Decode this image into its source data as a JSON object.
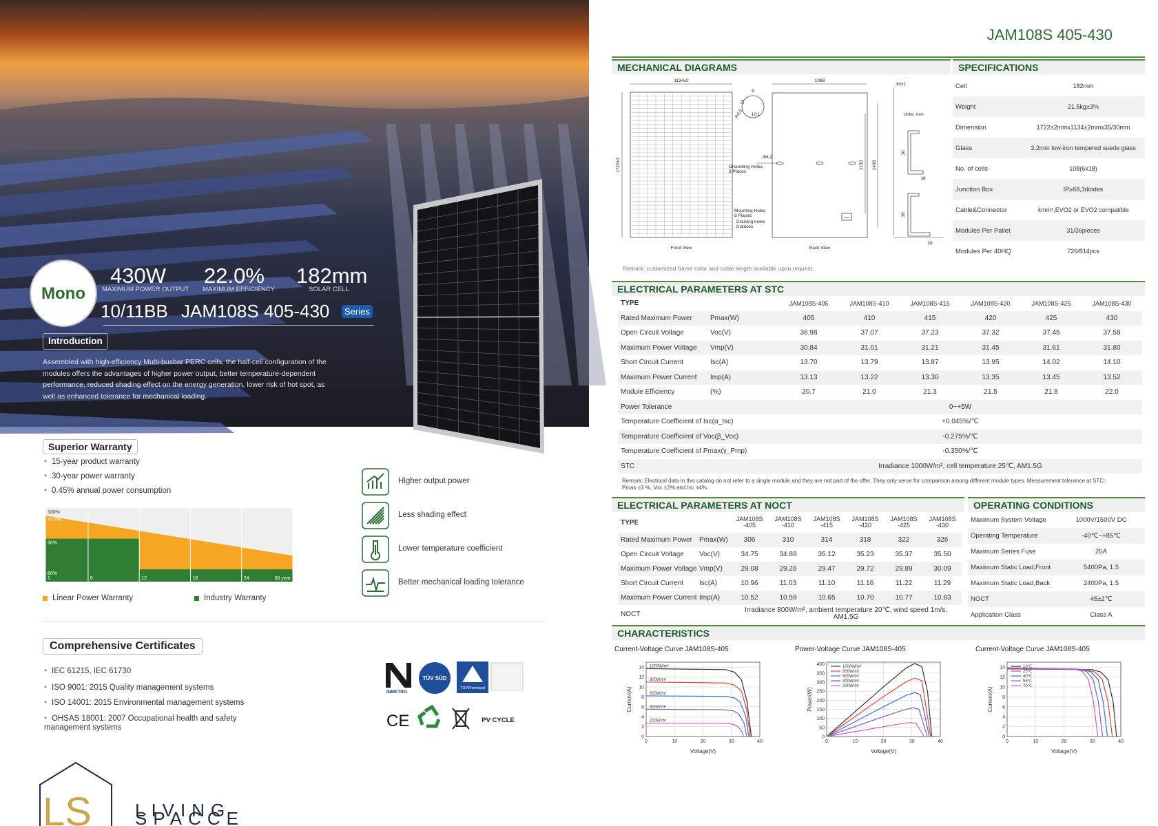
{
  "photo_panel": {
    "badge": "Mono",
    "stats": [
      {
        "value": "430W",
        "label": "MAXIMUM POWER OUTPUT"
      },
      {
        "value": "22.0%",
        "label": "MAXIMUM EFFICIENCY"
      },
      {
        "value": "182mm",
        "label": "SOLAR CELL"
      }
    ],
    "busbar": "10/11BB",
    "model": "JAM108S 405-430",
    "series_tag": "Series",
    "introduction": {
      "title": "Introduction",
      "text": "Assembled with high-efficiency Multi-busbar PERC cells, the half-cell configuration of the modules offers the advantages of higher power output, better temperature-dependent performance, reduced shading effect on the energy generation, lower risk of hot spot, as well as enhanced tolerance for mechanical loading."
    }
  },
  "warranty": {
    "title": "Superior Warranty",
    "items": [
      "15-year product warranty",
      "30-year power warranty",
      "0.45% annual power consumption"
    ],
    "chart": {
      "type": "area",
      "xlim": [
        1,
        30
      ],
      "ylim": [
        76,
        100
      ],
      "xticks": [
        1,
        6,
        12,
        18,
        24,
        {
          "value": 30,
          "label": "30 year"
        }
      ],
      "yticks": [
        {
          "value": 100,
          "label": "100%"
        },
        {
          "value": 97.5,
          "label": "97.5%"
        },
        {
          "value": 90,
          "label": "90%"
        },
        {
          "value": 80,
          "label": "80%"
        }
      ],
      "series": [
        {
          "name": "Linear Power Warranty",
          "color": "#f5a623",
          "x": [
            1,
            30
          ],
          "values": [
            97.5,
            84.45
          ]
        },
        {
          "name": "Industry Warranty",
          "color": "#2e7d32",
          "x": [
            1,
            12,
            12,
            30
          ],
          "values": [
            90,
            90,
            80,
            80
          ]
        }
      ]
    }
  },
  "features": [
    "Higher output power",
    "Less shading effect",
    "Lower temperature coefficient",
    "Better mechanical loading tolerance"
  ],
  "certificates": {
    "title": "Comprehensive Certificates",
    "items": [
      "IEC 61215, IEC 61730",
      "ISO 9001: 2015 Quality management systems",
      "ISO 14001: 2015 Environmental management systems",
      "OHSAS 18001: 2007 Occupational health and safety management systems"
    ],
    "logos": [
      "INMETRO",
      "TÜV SÜD",
      "TÜVRheinland",
      "CE",
      "PV CYCLE"
    ]
  },
  "brand": {
    "initials": "LS",
    "name_line1": "LIVING",
    "name_line2": "SPACCE"
  },
  "datasheet": {
    "model": "JAM108S 405-430",
    "mechanical": {
      "title": "MECHANICAL DIAGRAMS",
      "labels": {
        "width": "1134±2",
        "back_width": "1088",
        "frame": "30±1",
        "length": "1722±2",
        "mount_spacing": "1150",
        "hole_spacing": "1400",
        "units": "Units:  mm",
        "front_view": "Front View",
        "back_view": "Back View",
        "grounding": [
          "Grounding Holes",
          "6 Places"
        ],
        "mounting": [
          "Mounting Holes",
          "8 Places"
        ],
        "draining": [
          "Draining holes",
          "8 places"
        ],
        "hole_dia": "Φ4.2",
        "radius": "R4.5",
        "dim_14": "14",
        "dim_9": "9",
        "scale": "10:1",
        "profile_a": "30",
        "profile_b": "30",
        "profile_w1": "18",
        "profile_w2": "33",
        "label": "Label"
      },
      "remark": "Remark: customized frame color and cable length available upon request."
    },
    "specifications": {
      "title": "SPECIFICATIONS",
      "rows": [
        {
          "label": "Cell",
          "value": "182mm"
        },
        {
          "label": "Weight",
          "value": "21.5kg±3%"
        },
        {
          "label": "Dimension",
          "value": "1722±2mmx1134±2mmx35/30mm"
        },
        {
          "label": "Glass",
          "value": "3.2mm  low-iron tempered suede glass"
        },
        {
          "label": "No. of cells",
          "value": "108(6x18)"
        },
        {
          "label": "Junction Box",
          "value": "IP≥68,3diodes"
        },
        {
          "label": "Cable&Connector",
          "value": "4mm²,EVO2 or EVO2 compatible"
        },
        {
          "label": "Modules Per Pallet",
          "value": "31/36pieces"
        },
        {
          "label": "Modules Per 40HQ",
          "value": "726/814pcs"
        }
      ]
    },
    "stc": {
      "title": "ELECTRICAL PARAMETERS AT STC",
      "columns": [
        "TYPE",
        "JAM108S-405",
        "JAM108S-410",
        "JAM108S-415",
        "JAM108S-420",
        "JAM108S-425",
        "JAM108S-430"
      ],
      "rows": [
        {
          "name": "Rated Maximum Power",
          "unit": "Pmax(W)",
          "values": [
            "405",
            "410",
            "415",
            "420",
            "425",
            "430"
          ]
        },
        {
          "name": "Open Circuit Voltage",
          "unit": "Voc(V)",
          "values": [
            "36.98",
            "37.07",
            "37.23",
            "37.32",
            "37.45",
            "37.58"
          ]
        },
        {
          "name": "Maximum Power  Voltage",
          "unit": "Vmp(V)",
          "values": [
            "30.84",
            "31.01",
            "31.21",
            "31.45",
            "31.61",
            "31.80"
          ]
        },
        {
          "name": "Short Circuit Current",
          "unit": "Isc(A)",
          "values": [
            "13.70",
            "13.79",
            "13.87",
            "13.95",
            "14.02",
            "14.10"
          ]
        },
        {
          "name": "Maximum Power Current",
          "unit": "Imp(A)",
          "values": [
            "13.13",
            "13.22",
            "13.30",
            "13.35",
            "13.45",
            "13.52"
          ]
        },
        {
          "name": "Module Efficiency",
          "unit": "(%)",
          "values": [
            "20.7",
            "21.0",
            "21.3",
            "21.5",
            "21.8",
            "22.0"
          ]
        }
      ],
      "common_rows": [
        {
          "label": "Power Tolerance",
          "value": "0~+5W"
        },
        {
          "label": "Temperature Coefficient of Isc(α_Isc)",
          "value": "+0.045%/℃"
        },
        {
          "label": "Temperature Coefficient of Voc(β_Voc)",
          "value": "-0.275%/℃"
        },
        {
          "label": "Temperature Coefficient of Pmax(γ_Pmp)",
          "value": "-0.350%/℃"
        },
        {
          "label": "STC",
          "value": "Irradiance 1000W/m²,  cell temperature 25℃, AM1.5G"
        }
      ],
      "remark": "Remark: Electrical data in this catalog do not refer to a single module and they are not part of the offer. They only serve for comparison among different module types. Measurement tolerance at STC: Pmax ±3 %, Voc ±2% and Isc ±4%."
    },
    "noct": {
      "title": "ELECTRICAL PARAMETERS AT NOCT",
      "columns": [
        "TYPE",
        "JAM108S -405",
        "JAM108S -410",
        "JAM108S -415",
        "JAM108S -420",
        "JAM108S -425",
        "JAM108S -430"
      ],
      "rows": [
        {
          "name": "Rated Maximum Power",
          "unit": "Pmax(W)",
          "values": [
            "306",
            "310",
            "314",
            "318",
            "322",
            "326"
          ]
        },
        {
          "name": "Open Circuit Voltage",
          "unit": "Voc(V)",
          "values": [
            "34.75",
            "34.88",
            "35.12",
            "35.23",
            "35.37",
            "35.50"
          ]
        },
        {
          "name": "Maximum Power Voltage",
          "unit": "Vmp(V)",
          "values": [
            "29.08",
            "29.26",
            "29.47",
            "29.72",
            "29.89",
            "30.09"
          ]
        },
        {
          "name": "Short Circuit Current",
          "unit": "Isc(A)",
          "values": [
            "10.96",
            "11.03",
            "11.10",
            "11.16",
            "11.22",
            "11.29"
          ]
        },
        {
          "name": "Maximum Power Current",
          "unit": "Imp(A)",
          "values": [
            "10.52",
            "10.59",
            "10.65",
            "10.70",
            "10.77",
            "10.83"
          ]
        }
      ],
      "common_rows": [
        {
          "label": "NOCT",
          "value": "Irradiance 800W/m², ambient temperature 20℃, wind speed 1m/s, AM1.5G"
        }
      ]
    },
    "operating": {
      "title": "OPERATING CONDITIONS",
      "rows": [
        {
          "label": "Maximum System Voltage",
          "value": "1000V/1500V DC"
        },
        {
          "label": "Operating Temperature",
          "value": "-40℃~+85℃"
        },
        {
          "label": "Maximum Series Fuse",
          "value": "25A"
        },
        {
          "label": "Maximum Static Load,Front",
          "value": "5400Pa, 1.5"
        },
        {
          "label": "Maximum Static Load,Back",
          "value": "2400Pa, 1.5"
        },
        {
          "label": "NOCT",
          "value": "45±2℃"
        },
        {
          "label": "Application Class",
          "value": "Class A"
        }
      ]
    },
    "characteristics": {
      "title": "CHARACTERISTICS",
      "charts": [
        {
          "type": "line",
          "title": "Current-Voltage Curve   JAM108S-405",
          "xlabel": "Voltage(V)",
          "ylabel": "Current(A)",
          "xlim": [
            0,
            40
          ],
          "ylim": [
            0,
            15
          ],
          "xticks": [
            0,
            10,
            20,
            30,
            40
          ],
          "yticks": [
            0,
            2,
            4,
            6,
            8,
            10,
            12,
            14
          ],
          "legend": "inline",
          "series": [
            {
              "name": "1000W/m²",
              "color": "#333333",
              "x": [
                0,
                28,
                31,
                33.5,
                35.5,
                37
              ],
              "values": [
                13.7,
                13.5,
                13.0,
                11.5,
                7,
                0
              ]
            },
            {
              "name": "800W/m²",
              "color": "#e0463a",
              "x": [
                0,
                28,
                31,
                33.5,
                35.3,
                36.6
              ],
              "values": [
                11.0,
                10.8,
                10.4,
                9.2,
                5.6,
                0
              ]
            },
            {
              "name": "600W/m²",
              "color": "#3a6fd0",
              "x": [
                0,
                28,
                31,
                33,
                35,
                36.1
              ],
              "values": [
                8.2,
                8.1,
                7.8,
                7.0,
                4.2,
                0
              ]
            },
            {
              "name": "400W/m²",
              "color": "#7a5fbf",
              "x": [
                0,
                27,
                30.5,
                32.5,
                34.4,
                35.4
              ],
              "values": [
                5.5,
                5.4,
                5.2,
                4.6,
                2.8,
                0
              ]
            },
            {
              "name": "200W/m²",
              "color": "#c060c0",
              "x": [
                0,
                26,
                29.5,
                31.5,
                33.3,
                34.3
              ],
              "values": [
                2.7,
                2.7,
                2.6,
                2.3,
                1.4,
                0
              ]
            }
          ]
        },
        {
          "type": "line",
          "title": "Power-Voltage Curve   JAM108S-405",
          "xlabel": "Voltage(V)",
          "ylabel": "Power(W)",
          "xlim": [
            0,
            40
          ],
          "ylim": [
            0,
            410
          ],
          "xticks": [
            0,
            10,
            20,
            30,
            40
          ],
          "yticks": [
            0,
            50,
            100,
            150,
            200,
            250,
            300,
            350,
            400
          ],
          "legend": "upper left",
          "series": [
            {
              "name": "1000W/m²",
              "color": "#333333",
              "x": [
                0,
                10,
                20,
                28,
                31,
                33.5,
                35.5,
                37
              ],
              "values": [
                0,
                137,
                274,
                378,
                403,
                385,
                249,
                0
              ]
            },
            {
              "name": "800W/m²",
              "color": "#e0463a",
              "x": [
                0,
                10,
                20,
                28,
                31,
                33.5,
                36.6
              ],
              "values": [
                0,
                110,
                220,
                302,
                322,
                308,
                0
              ]
            },
            {
              "name": "600W/m²",
              "color": "#3a6fd0",
              "x": [
                0,
                10,
                20,
                28,
                31,
                33,
                36.1
              ],
              "values": [
                0,
                82,
                164,
                227,
                242,
                231,
                0
              ]
            },
            {
              "name": "400W/m²",
              "color": "#7a5fbf",
              "x": [
                0,
                10,
                20,
                27,
                30.5,
                32.5,
                35.4
              ],
              "values": [
                0,
                55,
                110,
                146,
                159,
                150,
                0
              ]
            },
            {
              "name": "200W/m²",
              "color": "#c060c0",
              "x": [
                0,
                10,
                20,
                26,
                29.5,
                31.5,
                34.3
              ],
              "values": [
                0,
                27,
                54,
                70,
                77,
                72,
                0
              ]
            }
          ]
        },
        {
          "type": "line",
          "title": "Current-Voltage Curve   JAM108S-405",
          "xlabel": "Voltage(V)",
          "ylabel": "Current(A)",
          "xlim": [
            0,
            40
          ],
          "ylim": [
            0,
            15
          ],
          "xticks": [
            0,
            10,
            20,
            30,
            40
          ],
          "yticks": [
            0,
            2,
            4,
            6,
            8,
            10,
            12,
            14
          ],
          "legend": "upper left",
          "series": [
            {
              "name": "10℃",
              "color": "#333333",
              "x": [
                0,
                30,
                33,
                35.5,
                37.3,
                38.5
              ],
              "values": [
                13.65,
                13.5,
                13,
                11.5,
                7,
                0
              ]
            },
            {
              "name": "25℃",
              "color": "#e0463a",
              "x": [
                0,
                28,
                31,
                33.5,
                35.5,
                37
              ],
              "values": [
                13.7,
                13.5,
                13,
                11.5,
                7,
                0
              ]
            },
            {
              "name": "40℃",
              "color": "#3a6fd0",
              "x": [
                0,
                26.5,
                29.5,
                32,
                33.8,
                35.3
              ],
              "values": [
                13.75,
                13.55,
                13.05,
                11.5,
                7,
                0
              ]
            },
            {
              "name": "55℃",
              "color": "#7a5fbf",
              "x": [
                0,
                25,
                28,
                30.3,
                32.1,
                33.6
              ],
              "values": [
                13.8,
                13.6,
                13.1,
                11.5,
                7,
                0
              ]
            },
            {
              "name": "70℃",
              "color": "#c060c0",
              "x": [
                0,
                23.5,
                26.5,
                28.6,
                30.4,
                31.9
              ],
              "values": [
                13.85,
                13.65,
                13.1,
                11.5,
                7,
                0
              ]
            }
          ]
        }
      ]
    }
  }
}
